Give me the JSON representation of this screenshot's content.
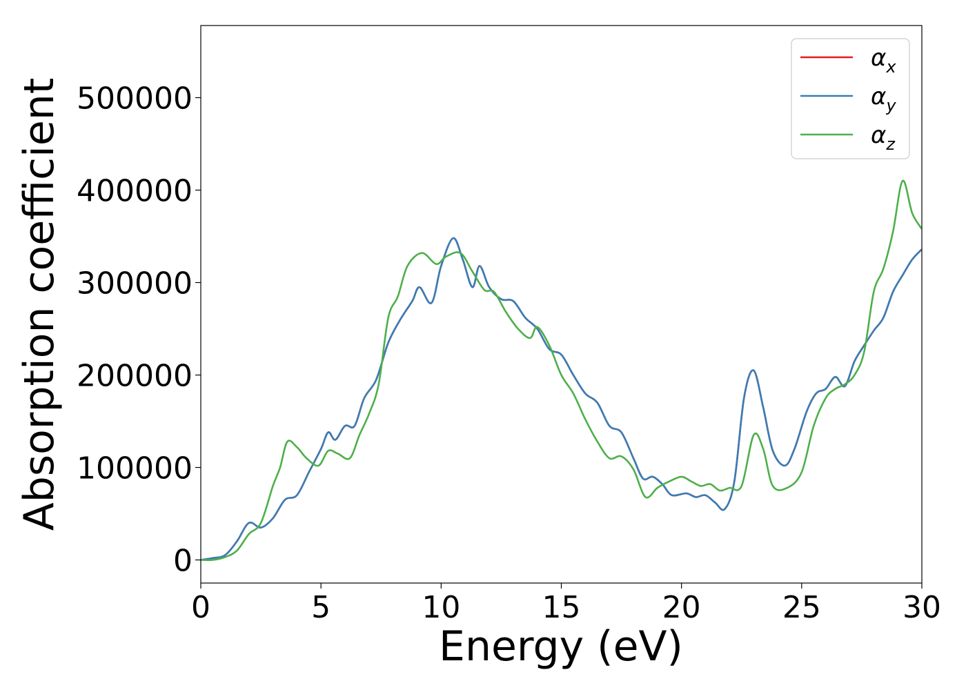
{
  "chart_data": {
    "type": "line",
    "xlabel": "Energy (eV)",
    "ylabel": "Absorption coefficient",
    "xlim": [
      0,
      30
    ],
    "ylim": [
      -25000,
      578000
    ],
    "x_ticks": [
      "0",
      "5",
      "10",
      "15",
      "20",
      "25",
      "30"
    ],
    "y_ticks": [
      "0",
      "100000",
      "200000",
      "300000",
      "400000",
      "500000"
    ],
    "x_tick_values": [
      0,
      5,
      10,
      15,
      20,
      25,
      30
    ],
    "y_tick_values": [
      0,
      100000,
      200000,
      300000,
      400000,
      500000
    ],
    "grid": false,
    "legend_position": "top-right",
    "series": [
      {
        "name": "α_x",
        "color": "#e41a1c",
        "points": [
          [
            0,
            0
          ],
          [
            0.5,
            2000
          ],
          [
            1,
            5000
          ],
          [
            1.5,
            20000
          ],
          [
            2,
            40000
          ],
          [
            2.5,
            35000
          ],
          [
            3,
            45000
          ],
          [
            3.5,
            65000
          ],
          [
            4,
            70000
          ],
          [
            4.5,
            95000
          ],
          [
            5,
            120000
          ],
          [
            5.3,
            138000
          ],
          [
            5.6,
            130000
          ],
          [
            6,
            145000
          ],
          [
            6.4,
            145000
          ],
          [
            6.8,
            175000
          ],
          [
            7.3,
            195000
          ],
          [
            7.8,
            235000
          ],
          [
            8.3,
            260000
          ],
          [
            8.8,
            280000
          ],
          [
            9.1,
            295000
          ],
          [
            9.6,
            278000
          ],
          [
            10,
            318000
          ],
          [
            10.5,
            348000
          ],
          [
            10.9,
            325000
          ],
          [
            11.3,
            295000
          ],
          [
            11.6,
            318000
          ],
          [
            12,
            295000
          ],
          [
            12.5,
            282000
          ],
          [
            13,
            280000
          ],
          [
            13.5,
            262000
          ],
          [
            14,
            250000
          ],
          [
            14.5,
            228000
          ],
          [
            15,
            222000
          ],
          [
            15.5,
            200000
          ],
          [
            16,
            180000
          ],
          [
            16.5,
            170000
          ],
          [
            17,
            145000
          ],
          [
            17.5,
            138000
          ],
          [
            18,
            110000
          ],
          [
            18.4,
            88000
          ],
          [
            18.8,
            90000
          ],
          [
            19.2,
            82000
          ],
          [
            19.6,
            70000
          ],
          [
            20.2,
            72000
          ],
          [
            20.6,
            68000
          ],
          [
            21,
            70000
          ],
          [
            21.4,
            62000
          ],
          [
            21.8,
            55000
          ],
          [
            22.2,
            85000
          ],
          [
            22.6,
            175000
          ],
          [
            23,
            205000
          ],
          [
            23.4,
            165000
          ],
          [
            23.8,
            118000
          ],
          [
            24.3,
            102000
          ],
          [
            24.7,
            120000
          ],
          [
            25.2,
            160000
          ],
          [
            25.6,
            180000
          ],
          [
            26,
            185000
          ],
          [
            26.4,
            198000
          ],
          [
            26.8,
            188000
          ],
          [
            27.2,
            215000
          ],
          [
            27.6,
            232000
          ],
          [
            28,
            248000
          ],
          [
            28.4,
            262000
          ],
          [
            28.8,
            290000
          ],
          [
            29.2,
            308000
          ],
          [
            29.6,
            325000
          ],
          [
            30,
            336000
          ]
        ]
      },
      {
        "name": "α_y",
        "color": "#377eb8",
        "points": [
          [
            0,
            0
          ],
          [
            0.5,
            2000
          ],
          [
            1,
            5000
          ],
          [
            1.5,
            20000
          ],
          [
            2,
            40000
          ],
          [
            2.5,
            35000
          ],
          [
            3,
            45000
          ],
          [
            3.5,
            65000
          ],
          [
            4,
            70000
          ],
          [
            4.5,
            95000
          ],
          [
            5,
            120000
          ],
          [
            5.3,
            138000
          ],
          [
            5.6,
            130000
          ],
          [
            6,
            145000
          ],
          [
            6.4,
            145000
          ],
          [
            6.8,
            175000
          ],
          [
            7.3,
            195000
          ],
          [
            7.8,
            235000
          ],
          [
            8.3,
            260000
          ],
          [
            8.8,
            280000
          ],
          [
            9.1,
            295000
          ],
          [
            9.6,
            278000
          ],
          [
            10,
            318000
          ],
          [
            10.5,
            348000
          ],
          [
            10.9,
            325000
          ],
          [
            11.3,
            295000
          ],
          [
            11.6,
            318000
          ],
          [
            12,
            295000
          ],
          [
            12.5,
            282000
          ],
          [
            13,
            280000
          ],
          [
            13.5,
            262000
          ],
          [
            14,
            250000
          ],
          [
            14.5,
            228000
          ],
          [
            15,
            222000
          ],
          [
            15.5,
            200000
          ],
          [
            16,
            180000
          ],
          [
            16.5,
            170000
          ],
          [
            17,
            145000
          ],
          [
            17.5,
            138000
          ],
          [
            18,
            110000
          ],
          [
            18.4,
            88000
          ],
          [
            18.8,
            90000
          ],
          [
            19.2,
            82000
          ],
          [
            19.6,
            70000
          ],
          [
            20.2,
            72000
          ],
          [
            20.6,
            68000
          ],
          [
            21,
            70000
          ],
          [
            21.4,
            62000
          ],
          [
            21.8,
            55000
          ],
          [
            22.2,
            85000
          ],
          [
            22.6,
            175000
          ],
          [
            23,
            205000
          ],
          [
            23.4,
            165000
          ],
          [
            23.8,
            118000
          ],
          [
            24.3,
            102000
          ],
          [
            24.7,
            120000
          ],
          [
            25.2,
            160000
          ],
          [
            25.6,
            180000
          ],
          [
            26,
            185000
          ],
          [
            26.4,
            198000
          ],
          [
            26.8,
            188000
          ],
          [
            27.2,
            215000
          ],
          [
            27.6,
            232000
          ],
          [
            28,
            248000
          ],
          [
            28.4,
            262000
          ],
          [
            28.8,
            290000
          ],
          [
            29.2,
            308000
          ],
          [
            29.6,
            325000
          ],
          [
            30,
            336000
          ]
        ]
      },
      {
        "name": "α_z",
        "color": "#4daf4a",
        "points": [
          [
            0,
            0
          ],
          [
            0.5,
            0
          ],
          [
            1,
            3000
          ],
          [
            1.5,
            10000
          ],
          [
            2,
            28000
          ],
          [
            2.5,
            40000
          ],
          [
            3,
            80000
          ],
          [
            3.3,
            100000
          ],
          [
            3.6,
            128000
          ],
          [
            4,
            122000
          ],
          [
            4.4,
            110000
          ],
          [
            4.9,
            102000
          ],
          [
            5.3,
            118000
          ],
          [
            5.7,
            115000
          ],
          [
            6.2,
            110000
          ],
          [
            6.6,
            135000
          ],
          [
            7,
            158000
          ],
          [
            7.4,
            190000
          ],
          [
            7.8,
            262000
          ],
          [
            8.2,
            285000
          ],
          [
            8.6,
            318000
          ],
          [
            9.2,
            332000
          ],
          [
            9.8,
            320000
          ],
          [
            10.2,
            328000
          ],
          [
            10.8,
            332000
          ],
          [
            11.3,
            312000
          ],
          [
            11.8,
            292000
          ],
          [
            12.2,
            290000
          ],
          [
            12.7,
            268000
          ],
          [
            13.2,
            250000
          ],
          [
            13.7,
            240000
          ],
          [
            14,
            252000
          ],
          [
            14.5,
            232000
          ],
          [
            15,
            200000
          ],
          [
            15.5,
            180000
          ],
          [
            16,
            152000
          ],
          [
            16.5,
            128000
          ],
          [
            17,
            110000
          ],
          [
            17.5,
            112000
          ],
          [
            18,
            98000
          ],
          [
            18.5,
            68000
          ],
          [
            19,
            78000
          ],
          [
            19.5,
            85000
          ],
          [
            20,
            90000
          ],
          [
            20.4,
            85000
          ],
          [
            20.8,
            80000
          ],
          [
            21.2,
            82000
          ],
          [
            21.6,
            75000
          ],
          [
            22,
            78000
          ],
          [
            22.5,
            80000
          ],
          [
            23,
            135000
          ],
          [
            23.4,
            120000
          ],
          [
            23.8,
            80000
          ],
          [
            24.4,
            78000
          ],
          [
            25,
            95000
          ],
          [
            25.5,
            145000
          ],
          [
            26,
            175000
          ],
          [
            26.4,
            185000
          ],
          [
            26.8,
            190000
          ],
          [
            27.2,
            200000
          ],
          [
            27.6,
            225000
          ],
          [
            28,
            290000
          ],
          [
            28.4,
            315000
          ],
          [
            28.8,
            355000
          ],
          [
            29.2,
            410000
          ],
          [
            29.6,
            375000
          ],
          [
            30,
            358000
          ]
        ]
      }
    ]
  }
}
